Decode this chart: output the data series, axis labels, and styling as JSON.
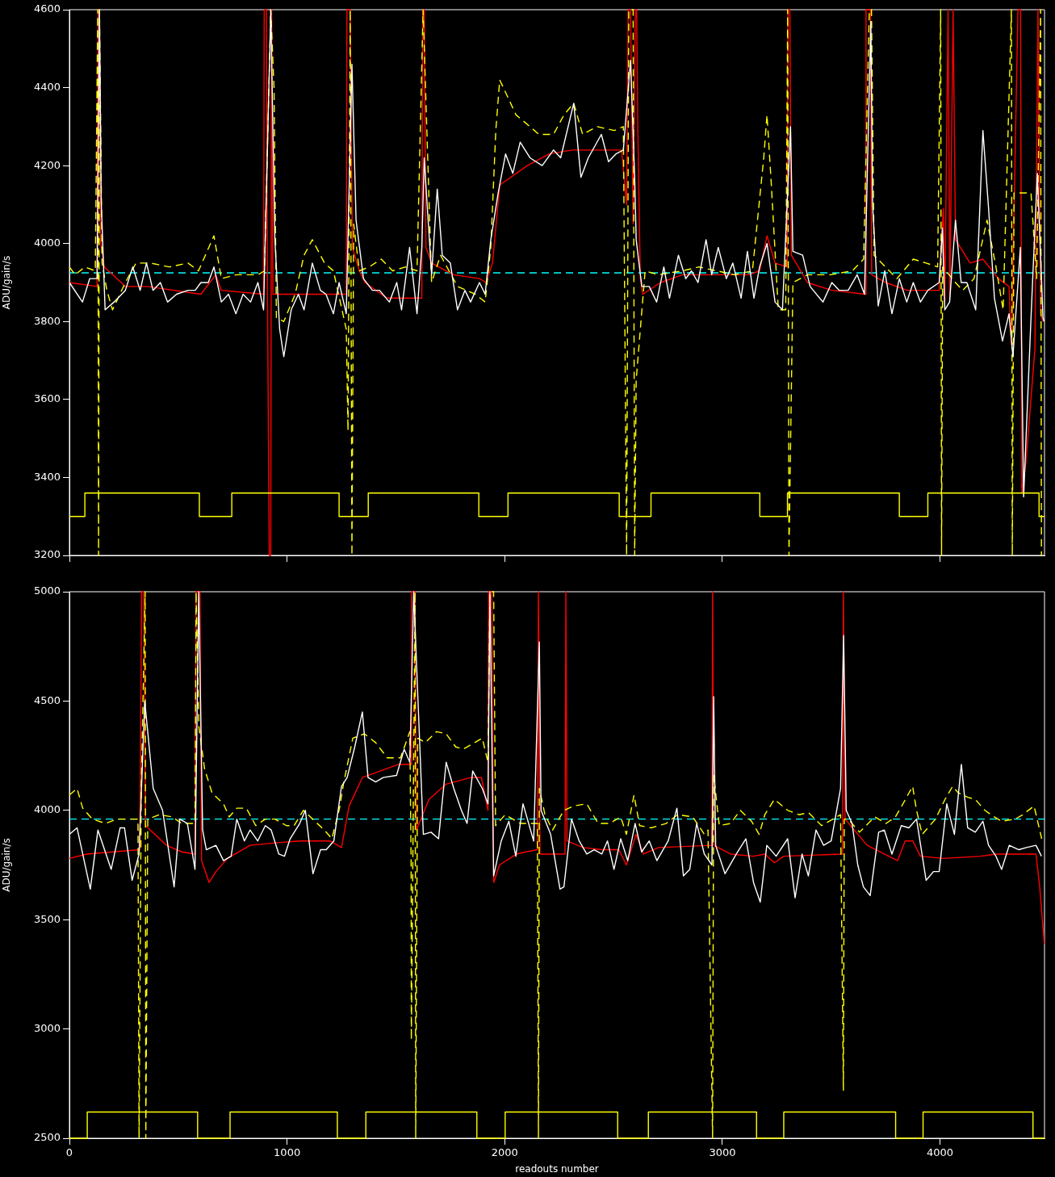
{
  "chart_data": [
    {
      "type": "line",
      "ylabel": "ADU/gain/s",
      "xlim": [
        0,
        4480
      ],
      "ylim": [
        3200,
        4600
      ],
      "xticks": [
        0,
        1000,
        2000,
        3000,
        4000
      ],
      "yticks": [
        3200,
        3400,
        3600,
        3800,
        4000,
        4200,
        4400,
        4600
      ],
      "tick_labels": "y",
      "ref_lines": [
        {
          "axis": "y",
          "value": 3925,
          "color": "#00ffff",
          "line_style": "dashed"
        }
      ],
      "series": [
        {
          "color": "#ffff00",
          "type": "step",
          "x": [
            0,
            71,
            597,
            746,
            1239,
            1373,
            1881,
            2015,
            2526,
            2672,
            3172,
            3299,
            3813,
            3944,
            4455,
            4480
          ],
          "values": [
            3300,
            3360,
            3300,
            3360,
            3300,
            3360,
            3300,
            3360,
            3300,
            3360,
            3300,
            3360,
            3300,
            3360,
            3300,
            3300
          ]
        },
        {
          "color": "#ffffff",
          "x": [
            0,
            60,
            93,
            127,
            138,
            146,
            164,
            205,
            257,
            291,
            325,
            354,
            384,
            418,
            451,
            492,
            545,
            578,
            604,
            638,
            664,
            698,
            731,
            765,
            798,
            832,
            866,
            892,
            925,
            944,
            966,
            985,
            1019,
            1052,
            1078,
            1116,
            1153,
            1179,
            1213,
            1239,
            1272,
            1298,
            1317,
            1351,
            1392,
            1425,
            1470,
            1504,
            1526,
            1563,
            1597,
            1619,
            1630,
            1664,
            1690,
            1713,
            1750,
            1783,
            1817,
            1843,
            1884,
            1910,
            1936,
            1970,
            2004,
            2037,
            2071,
            2116,
            2172,
            2224,
            2257,
            2317,
            2350,
            2384,
            2444,
            2477,
            2511,
            2545,
            2578,
            2597,
            2604,
            2630,
            2664,
            2698,
            2731,
            2757,
            2798,
            2832,
            2858,
            2888,
            2925,
            2951,
            2981,
            3018,
            3048,
            3086,
            3115,
            3145,
            3171,
            3205,
            3242,
            3276,
            3313,
            3324,
            3369,
            3403,
            3462,
            3503,
            3537,
            3578,
            3619,
            3653,
            3682,
            3690,
            3716,
            3746,
            3779,
            3813,
            3847,
            3877,
            3910,
            3944,
            3996,
            4011,
            4022,
            4044,
            4071,
            4097,
            4123,
            4164,
            4197,
            4223,
            4250,
            4287,
            4317,
            4335,
            4369,
            4384,
            4418,
            4447,
            4473,
            4478
          ],
          "values": [
            3900,
            3850,
            3910,
            3910,
            4600,
            4110,
            3830,
            3850,
            3880,
            3940,
            3880,
            3950,
            3880,
            3900,
            3850,
            3870,
            3880,
            3880,
            3900,
            3900,
            3940,
            3850,
            3870,
            3820,
            3870,
            3850,
            3900,
            3830,
            4600,
            4010,
            3780,
            3710,
            3830,
            3870,
            3830,
            3950,
            3880,
            3870,
            3820,
            3900,
            3820,
            4460,
            4060,
            3910,
            3880,
            3880,
            3850,
            3900,
            3830,
            3990,
            3820,
            3990,
            4220,
            3920,
            4140,
            3970,
            3950,
            3830,
            3880,
            3850,
            3900,
            3870,
            4010,
            4130,
            4230,
            4180,
            4260,
            4220,
            4200,
            4240,
            4220,
            4360,
            4170,
            4220,
            4280,
            4210,
            4230,
            4240,
            4470,
            4170,
            4010,
            3890,
            3890,
            3850,
            3940,
            3860,
            3970,
            3910,
            3930,
            3900,
            4010,
            3920,
            3990,
            3910,
            3950,
            3860,
            3980,
            3860,
            3940,
            4000,
            3850,
            3830,
            4300,
            3980,
            3970,
            3890,
            3850,
            3900,
            3880,
            3880,
            3920,
            3870,
            4570,
            4100,
            3840,
            3930,
            3820,
            3910,
            3850,
            3900,
            3850,
            3880,
            3900,
            4040,
            3830,
            3850,
            4060,
            3900,
            3900,
            3830,
            4290,
            4090,
            3860,
            3750,
            3820,
            3710,
            3990,
            3350,
            3810,
            4180,
            3810,
            3800
          ]
        },
        {
          "color": "#ffff00",
          "line_style": "dashed",
          "x": [
            0,
            26,
            71,
            119,
            130,
            134,
            138,
            150,
            172,
            198,
            257,
            306,
            373,
            459,
            545,
            593,
            664,
            698,
            765,
            866,
            896,
            925,
            940,
            951,
            985,
            1037,
            1078,
            1116,
            1172,
            1213,
            1272,
            1280,
            1290,
            1298,
            1306,
            1332,
            1377,
            1433,
            1485,
            1545,
            1597,
            1625,
            1664,
            1705,
            1783,
            1866,
            1910,
            1936,
            1959,
            1977,
            2052,
            2116,
            2157,
            2224,
            2272,
            2317,
            2358,
            2425,
            2503,
            2545,
            2560,
            2570,
            2590,
            2597,
            2604,
            2645,
            2705,
            2817,
            2892,
            3056,
            3138,
            3190,
            3205,
            3224,
            3257,
            3291,
            3300,
            3306,
            3324,
            3391,
            3496,
            3597,
            3649,
            3675,
            3685,
            3697,
            3802,
            3877,
            3936,
            3989,
            4003,
            4007,
            4012,
            4071,
            4104,
            4156,
            4216,
            4257,
            4290,
            4328,
            4332,
            4340,
            4418,
            4444,
            4462,
            4466
          ],
          "values": [
            3940,
            3920,
            3940,
            3930,
            4600,
            3200,
            4600,
            3950,
            3880,
            3830,
            3900,
            3950,
            3950,
            3940,
            3950,
            3930,
            4020,
            3910,
            3920,
            3920,
            3930,
            4600,
            4400,
            3810,
            3800,
            3870,
            3970,
            4010,
            3950,
            3930,
            3780,
            3520,
            4600,
            3200,
            4050,
            3930,
            3940,
            3960,
            3930,
            3940,
            3930,
            4600,
            3900,
            3970,
            3890,
            3870,
            3850,
            3990,
            4290,
            4420,
            4330,
            4300,
            4280,
            4280,
            4330,
            4360,
            4280,
            4300,
            4290,
            4300,
            3200,
            4600,
            4600,
            3200,
            3650,
            3930,
            3920,
            3930,
            3940,
            3920,
            3930,
            4220,
            4330,
            4160,
            3830,
            3830,
            4600,
            3200,
            3900,
            3920,
            3920,
            3930,
            3960,
            4600,
            4600,
            3970,
            3910,
            3960,
            3950,
            3940,
            4600,
            3200,
            3940,
            3900,
            3880,
            3910,
            4060,
            3940,
            3830,
            4600,
            3200,
            4130,
            4130,
            3910,
            4600,
            3200
          ]
        },
        {
          "color": "#ff0000",
          "x": [
            0,
            127,
            132,
            138,
            142,
            160,
            257,
            358,
            604,
            672,
            698,
            892,
            895,
            905,
            910,
            918,
            925,
            929,
            935,
            1272,
            1275,
            1290,
            1300,
            1332,
            1358,
            1459,
            1619,
            1623,
            1630,
            1638,
            1664,
            1765,
            1884,
            1914,
            1944,
            1977,
            2104,
            2205,
            2310,
            2537,
            2560,
            2567,
            2578,
            2590,
            2600,
            2606,
            2612,
            2623,
            2634,
            2716,
            2817,
            3123,
            3171,
            3205,
            3242,
            3298,
            3302,
            3310,
            3317,
            3391,
            3503,
            3657,
            3660,
            3680,
            3686,
            3750,
            3850,
            3996,
            4015,
            4022,
            4037,
            4045,
            4060,
            4071,
            4138,
            4197,
            4268,
            4317,
            4328,
            4358,
            4370,
            4376,
            4395,
            4436,
            4450,
            4462,
            4473
          ],
          "values": [
            3900,
            3890,
            4600,
            4600,
            4010,
            3940,
            3890,
            3890,
            3870,
            3920,
            3880,
            3870,
            4600,
            4600,
            3870,
            3200,
            3200,
            4600,
            3870,
            3870,
            4600,
            4600,
            3990,
            3930,
            3900,
            3860,
            3860,
            4600,
            4600,
            3990,
            3950,
            3920,
            3910,
            3900,
            3950,
            4150,
            4200,
            4230,
            4240,
            4240,
            4100,
            4600,
            4600,
            4050,
            4600,
            4600,
            4280,
            3910,
            3870,
            3900,
            3920,
            3920,
            3930,
            4020,
            3950,
            3940,
            4600,
            4600,
            3970,
            3900,
            3880,
            3870,
            4600,
            4600,
            3920,
            3900,
            3880,
            3880,
            4090,
            3850,
            4600,
            3860,
            4600,
            4010,
            3950,
            3960,
            3910,
            3890,
            3740,
            4600,
            4600,
            3360,
            3440,
            3730,
            4600,
            3820,
            3800
          ]
        }
      ]
    },
    {
      "type": "line",
      "xlabel": "readouts number",
      "ylabel": "ADU/gain/s",
      "xlim": [
        0,
        4480
      ],
      "ylim": [
        2500,
        5000
      ],
      "xticks": [
        0,
        1000,
        2000,
        3000,
        4000
      ],
      "yticks": [
        2500,
        3000,
        3500,
        4000,
        4500,
        5000
      ],
      "ref_lines": [
        {
          "axis": "y",
          "value": 3960,
          "color": "#00ffff",
          "line_style": "dashed"
        }
      ],
      "series": [
        {
          "color": "#ffff00",
          "type": "step",
          "x": [
            0,
            82,
            589,
            738,
            1231,
            1362,
            1872,
            2002,
            2519,
            2660,
            3157,
            3282,
            3796,
            3922,
            4427,
            4480
          ],
          "values": [
            2500,
            2620,
            2500,
            2620,
            2500,
            2620,
            2500,
            2620,
            2500,
            2620,
            2500,
            2620,
            2500,
            2620,
            2500,
            2500
          ]
        },
        {
          "color": "#ffffff",
          "x": [
            0,
            35,
            96,
            131,
            192,
            233,
            253,
            288,
            320,
            346,
            385,
            428,
            481,
            507,
            542,
            577,
            594,
            612,
            629,
            673,
            708,
            743,
            769,
            804,
            830,
            865,
            900,
            927,
            962,
            988,
            1014,
            1058,
            1084,
            1119,
            1154,
            1180,
            1215,
            1250,
            1276,
            1311,
            1346,
            1372,
            1407,
            1442,
            1503,
            1538,
            1564,
            1582,
            1600,
            1626,
            1661,
            1696,
            1731,
            1766,
            1801,
            1827,
            1853,
            1897,
            1923,
            1932,
            1949,
            1984,
            2019,
            2051,
            2084,
            2133,
            2159,
            2167,
            2211,
            2254,
            2272,
            2307,
            2342,
            2377,
            2411,
            2446,
            2472,
            2502,
            2533,
            2565,
            2599,
            2629,
            2664,
            2699,
            2751,
            2791,
            2821,
            2850,
            2882,
            2917,
            2952,
            2960,
            2969,
            3012,
            3064,
            3108,
            3143,
            3174,
            3204,
            3247,
            3300,
            3334,
            3366,
            3395,
            3430,
            3465,
            3500,
            3543,
            3557,
            3569,
            3596,
            3622,
            3648,
            3679,
            3718,
            3744,
            3779,
            3822,
            3857,
            3892,
            3936,
            3970,
            3996,
            4031,
            4066,
            4098,
            4127,
            4162,
            4197,
            4223,
            4257,
            4283,
            4318,
            4362,
            4397,
            4441,
            4466
          ],
          "values": [
            3890,
            3920,
            3640,
            3910,
            3730,
            3920,
            3920,
            3680,
            3800,
            4500,
            4100,
            4000,
            3650,
            3960,
            3940,
            3730,
            5000,
            3910,
            3820,
            3840,
            3770,
            3790,
            3960,
            3860,
            3910,
            3860,
            3930,
            3910,
            3800,
            3790,
            3870,
            3940,
            4000,
            3710,
            3820,
            3820,
            3860,
            4110,
            4150,
            4290,
            4450,
            4150,
            4130,
            4150,
            4160,
            4280,
            4220,
            5000,
            4540,
            3890,
            3900,
            3870,
            4220,
            4100,
            4000,
            3940,
            4180,
            4100,
            4030,
            5000,
            3700,
            3860,
            3950,
            3790,
            4030,
            3860,
            4770,
            4000,
            3890,
            3640,
            3650,
            3960,
            3860,
            3800,
            3820,
            3800,
            3860,
            3730,
            3870,
            3770,
            3940,
            3810,
            3860,
            3770,
            3860,
            4010,
            3700,
            3730,
            3940,
            3800,
            3750,
            4520,
            3840,
            3710,
            3800,
            3870,
            3670,
            3580,
            3840,
            3790,
            3870,
            3600,
            3800,
            3700,
            3910,
            3840,
            3860,
            4100,
            4800,
            4000,
            3940,
            3750,
            3650,
            3610,
            3900,
            3910,
            3800,
            3930,
            3920,
            3960,
            3680,
            3720,
            3720,
            4030,
            3890,
            4210,
            3920,
            3900,
            3950,
            3840,
            3790,
            3730,
            3840,
            3820,
            3830,
            3840,
            3790
          ]
        },
        {
          "color": "#ffff00",
          "line_style": "dashed",
          "x": [
            0,
            35,
            61,
            105,
            166,
            219,
            271,
            315,
            320,
            330,
            348,
            351,
            360,
            413,
            472,
            516,
            577,
            582,
            595,
            621,
            655,
            708,
            734,
            769,
            813,
            856,
            900,
            944,
            997,
            1032,
            1075,
            1128,
            1171,
            1206,
            1241,
            1259,
            1302,
            1355,
            1407,
            1460,
            1521,
            1564,
            1570,
            1571,
            1588,
            1591,
            1600,
            1635,
            1687,
            1731,
            1775,
            1810,
            1862,
            1897,
            1923,
            1932,
            1949,
            1958,
            2002,
            2072,
            2098,
            2150,
            2155,
            2159,
            2185,
            2220,
            2272,
            2316,
            2377,
            2429,
            2481,
            2533,
            2559,
            2594,
            2620,
            2672,
            2742,
            2794,
            2864,
            2917,
            2934,
            2955,
            2960,
            2986,
            3038,
            3082,
            3134,
            3169,
            3195,
            3239,
            3300,
            3352,
            3395,
            3456,
            3508,
            3543,
            3556,
            3560,
            3578,
            3630,
            3700,
            3752,
            3795,
            3830,
            3874,
            3892,
            3918,
            3979,
            4023,
            4058,
            4084,
            4127,
            4162,
            4206,
            4249,
            4284,
            4345,
            4380,
            4432,
            4467
          ],
          "values": [
            4070,
            4100,
            4010,
            3960,
            3940,
            3960,
            3960,
            3960,
            2500,
            4100,
            5000,
            2500,
            3960,
            3980,
            3970,
            3940,
            3940,
            5000,
            4380,
            4190,
            4080,
            4030,
            3970,
            4010,
            4010,
            3930,
            3960,
            3960,
            3930,
            3930,
            4000,
            3950,
            3910,
            3870,
            4010,
            4120,
            4330,
            4350,
            4310,
            4240,
            4240,
            4360,
            3750,
            2950,
            5000,
            2500,
            4330,
            4310,
            4360,
            4350,
            4290,
            4280,
            4310,
            4330,
            4220,
            5000,
            5000,
            3930,
            3980,
            3940,
            3940,
            3940,
            2500,
            4100,
            3980,
            3910,
            4000,
            4020,
            4030,
            3940,
            3940,
            3970,
            3890,
            4070,
            3930,
            3920,
            3940,
            3980,
            3970,
            3890,
            3910,
            2500,
            4160,
            3930,
            3940,
            4000,
            3950,
            3890,
            3980,
            4050,
            4000,
            3980,
            3990,
            3930,
            3960,
            3980,
            2720,
            3960,
            3960,
            3900,
            3970,
            3940,
            3970,
            4030,
            4110,
            4000,
            3890,
            3960,
            4050,
            4110,
            4080,
            4060,
            4050,
            4000,
            3970,
            3950,
            3960,
            3980,
            4020,
            3870
          ]
        },
        {
          "color": "#ff0000",
          "x": [
            0,
            79,
            201,
            323,
            332,
            341,
            350,
            446,
            516,
            577,
            582,
            600,
            607,
            642,
            673,
            726,
            830,
            935,
            1058,
            1198,
            1250,
            1285,
            1346,
            1512,
            1570,
            1572,
            1588,
            1594,
            1652,
            1731,
            1844,
            1893,
            1923,
            1926,
            1940,
            1949,
            1976,
            2054,
            2098,
            2150,
            2155,
            2162,
            2277,
            2281,
            2286,
            2359,
            2446,
            2524,
            2559,
            2603,
            2638,
            2707,
            2952,
            2955,
            2960,
            3038,
            3143,
            3195,
            3239,
            3282,
            3552,
            3556,
            3564,
            3665,
            3805,
            3840,
            3875,
            3910,
            4014,
            4188,
            4258,
            4441,
            4458,
            4479
          ],
          "values": [
            3780,
            3800,
            3810,
            3820,
            5000,
            5000,
            3930,
            3840,
            3810,
            3800,
            5000,
            5000,
            3770,
            3670,
            3720,
            3780,
            3840,
            3850,
            3860,
            3860,
            3830,
            4020,
            4150,
            4210,
            4210,
            5000,
            5000,
            3910,
            4050,
            4120,
            4150,
            4150,
            4000,
            5000,
            5000,
            3670,
            3750,
            3800,
            3810,
            3820,
            5000,
            3800,
            3800,
            5000,
            3860,
            3830,
            3820,
            3820,
            3750,
            3890,
            3800,
            3830,
            3840,
            5000,
            3840,
            3800,
            3790,
            3800,
            3760,
            3790,
            3800,
            5000,
            3960,
            3840,
            3770,
            3860,
            3860,
            3790,
            3780,
            3790,
            3800,
            3800,
            3650,
            3390
          ]
        }
      ]
    }
  ]
}
